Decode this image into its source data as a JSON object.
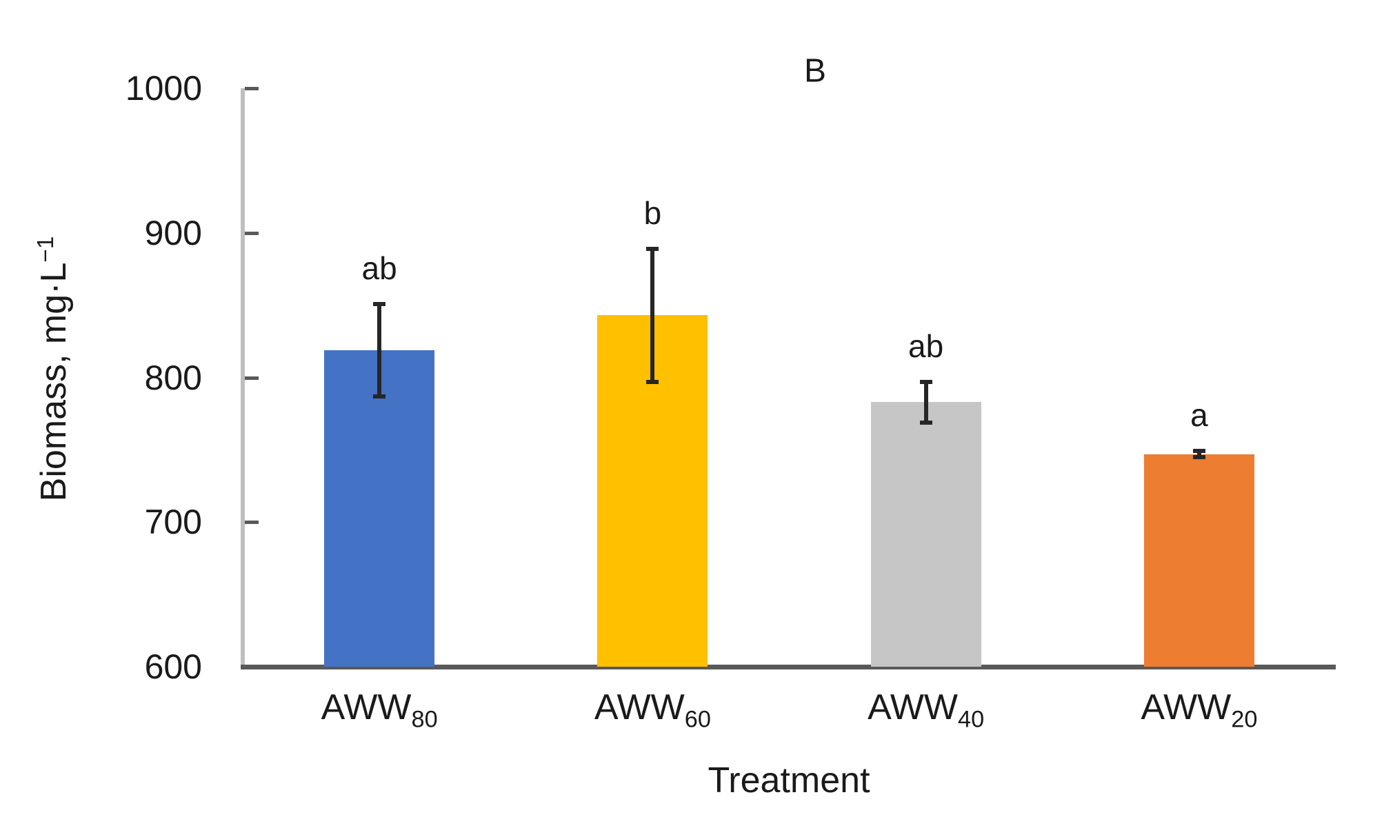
{
  "chart_data": {
    "type": "bar",
    "title": "B",
    "xlabel": "Treatment",
    "ylabel": "Biomass, mg·L−1",
    "ylabel_main": "Biomass, mg·L",
    "ylabel_sup": "−1",
    "ylim": [
      600,
      1000
    ],
    "yticks": [
      600,
      700,
      800,
      900,
      1000
    ],
    "grid": false,
    "legend": "none",
    "categories": [
      "AWW80",
      "AWW60",
      "AWW40",
      "AWW20"
    ],
    "category_parts": [
      {
        "base": "AWW",
        "sub": "80"
      },
      {
        "base": "AWW",
        "sub": "60"
      },
      {
        "base": "AWW",
        "sub": "40"
      },
      {
        "base": "AWW",
        "sub": "20"
      }
    ],
    "values": [
      819,
      843,
      783,
      747
    ],
    "error_bars": [
      32,
      46,
      14,
      2
    ],
    "sig_letters": [
      "ab",
      "b",
      "ab",
      "a"
    ],
    "bar_colors": [
      "#4472C4",
      "#FFC000",
      "#C6C6C6",
      "#ED7D31"
    ],
    "axis_colors": {
      "y_line": "#BFBFBF",
      "x_line": "#595959",
      "tick": "#595959",
      "text": "#1A1A1A"
    }
  }
}
